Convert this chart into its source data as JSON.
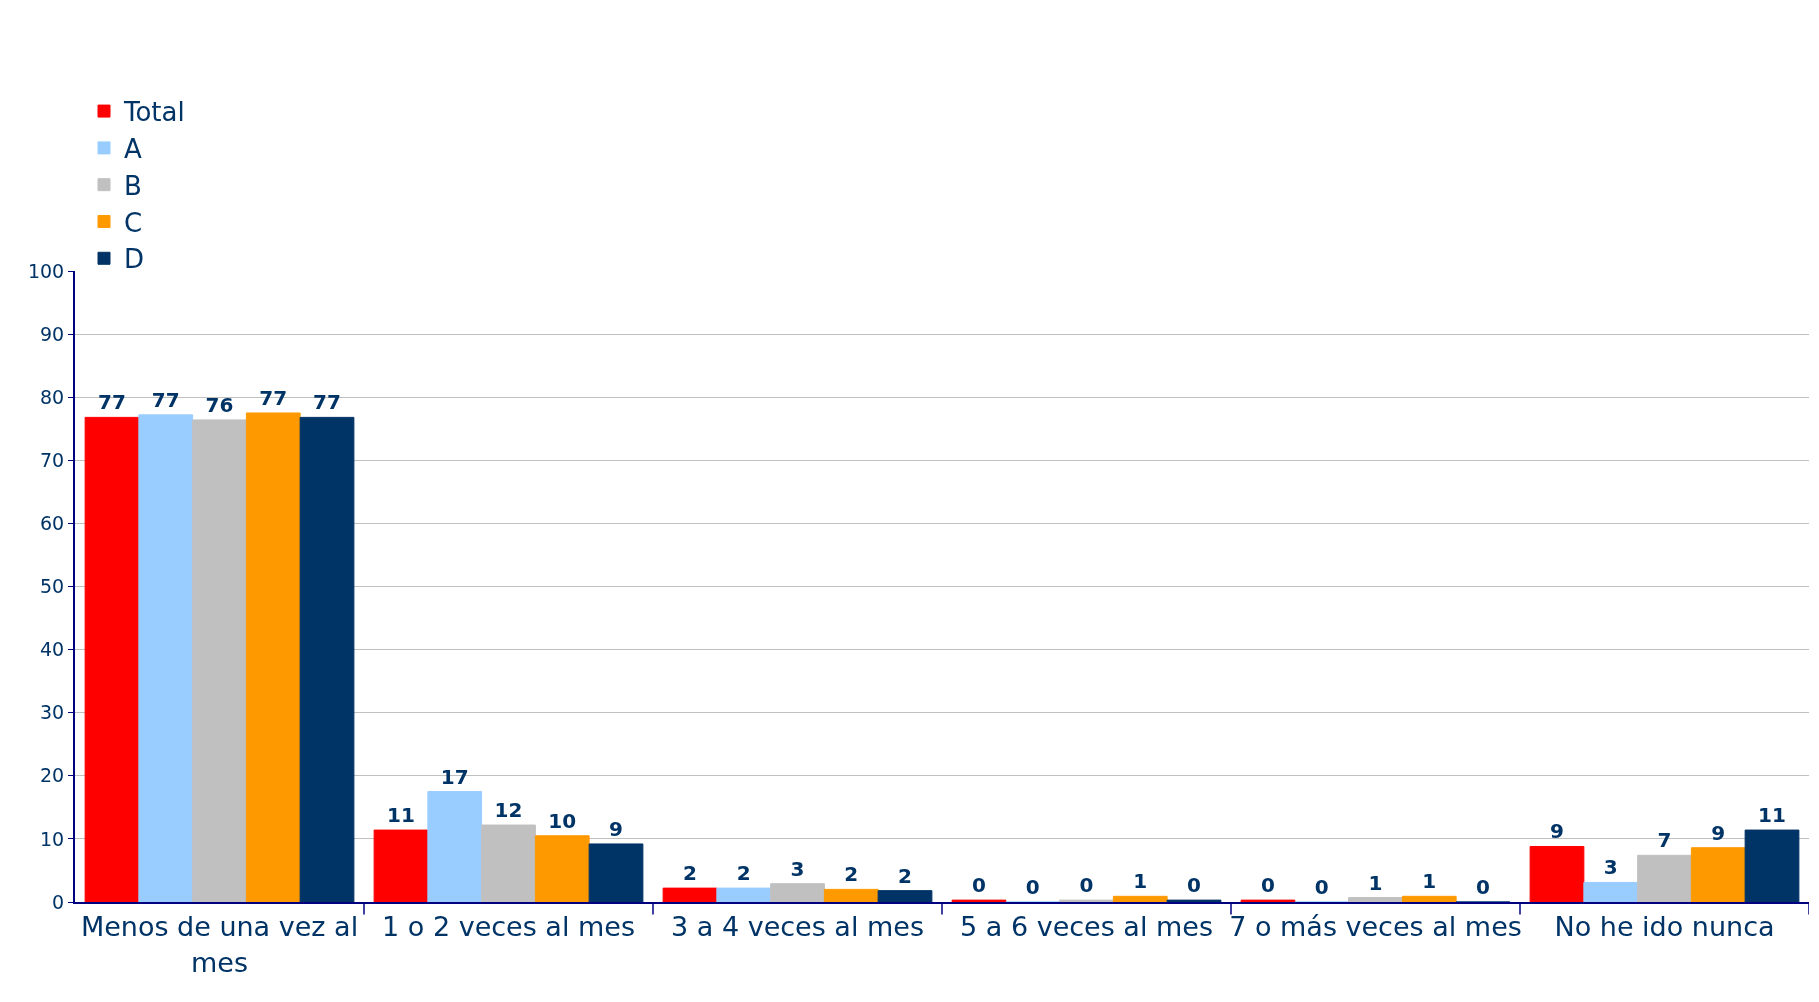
{
  "chart_data": {
    "type": "bar",
    "categories": [
      "Menos de una vez al mes",
      "1 o 2 veces al mes",
      "3 a 4 veces al mes",
      "5 a 6 veces al mes",
      "7 o más veces al mes",
      "No he ido nunca"
    ],
    "series": [
      {
        "name": "Total",
        "color": "#ff0000",
        "values": [
          76.8,
          11.4,
          2.2,
          0.3,
          0.3,
          8.8
        ],
        "value_labels": [
          "77",
          "11",
          "2",
          "0",
          "0",
          "9"
        ]
      },
      {
        "name": "A",
        "color": "#99ccff",
        "values": [
          77.2,
          17.5,
          2.2,
          0,
          0,
          3.1
        ],
        "value_labels": [
          "77",
          "17",
          "2",
          "0",
          "0",
          "3"
        ]
      },
      {
        "name": "B",
        "color": "#c0c0c0",
        "values": [
          76.4,
          12.2,
          2.9,
          0.3,
          0.7,
          7.4
        ],
        "value_labels": [
          "76",
          "12",
          "3",
          "0",
          "1",
          "7"
        ]
      },
      {
        "name": "C",
        "color": "#ff9900",
        "values": [
          77.5,
          10.5,
          2.0,
          0.9,
          0.9,
          8.6
        ],
        "value_labels": [
          "77",
          "10",
          "2",
          "1",
          "1",
          "9"
        ]
      },
      {
        "name": "D",
        "color": "#003366",
        "values": [
          76.8,
          9.2,
          1.8,
          0.3,
          0,
          11.4
        ],
        "value_labels": [
          "77",
          "9",
          "2",
          "0",
          "0",
          "11"
        ]
      }
    ],
    "ylim": [
      0,
      100
    ],
    "yticks": [
      0,
      10,
      20,
      30,
      40,
      50,
      60,
      70,
      80,
      90,
      100
    ],
    "grid": "y",
    "legend": "top"
  }
}
